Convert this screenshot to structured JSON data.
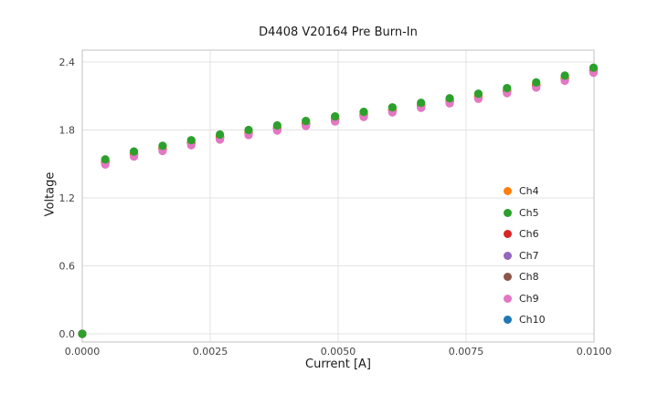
{
  "chart_data": {
    "type": "scatter",
    "title": "D4408 V20164 Pre Burn-In",
    "xlabel": "Current [A]",
    "ylabel": "Voltage",
    "xlim": [
      0.0,
      0.01
    ],
    "ylim": [
      0.0,
      2.4
    ],
    "grid": true,
    "legend_position": "lower right",
    "xticks": {
      "values": [
        0.0,
        0.0025,
        0.005,
        0.0075,
        0.01
      ],
      "labels": [
        "0.0000",
        "0.0025",
        "0.0050",
        "0.0075",
        "0.0100"
      ]
    },
    "yticks": {
      "values": [
        0.0,
        0.6,
        1.2,
        1.8,
        2.4
      ],
      "labels": [
        "0.0",
        "0.6",
        "1.2",
        "1.8",
        "2.4"
      ]
    },
    "x": [
      0.0,
      0.00045,
      0.00101,
      0.00157,
      0.00213,
      0.00269,
      0.00325,
      0.00381,
      0.00437,
      0.00494,
      0.0055,
      0.00606,
      0.00662,
      0.00718,
      0.00774,
      0.0083,
      0.00887,
      0.00943,
      0.00999
    ],
    "series": [
      {
        "name": "Ch4",
        "color": "#ff7f0e",
        "values": [
          0.0,
          1.525,
          1.595,
          1.645,
          1.695,
          1.745,
          1.785,
          1.825,
          1.865,
          1.905,
          1.945,
          1.985,
          2.025,
          2.065,
          2.105,
          2.155,
          2.205,
          2.265,
          2.335
        ]
      },
      {
        "name": "Ch5",
        "color": "#2ca02c",
        "values": [
          0.0,
          1.54,
          1.61,
          1.66,
          1.71,
          1.76,
          1.8,
          1.84,
          1.88,
          1.92,
          1.96,
          2.0,
          2.04,
          2.08,
          2.12,
          2.17,
          2.22,
          2.28,
          2.35
        ]
      },
      {
        "name": "Ch6",
        "color": "#d62728",
        "values": [
          0.0,
          1.517,
          1.587,
          1.637,
          1.687,
          1.737,
          1.777,
          1.817,
          1.857,
          1.897,
          1.937,
          1.977,
          2.017,
          2.057,
          2.097,
          2.147,
          2.197,
          2.257,
          2.327
        ]
      },
      {
        "name": "Ch7",
        "color": "#9467bd",
        "values": [
          0.0,
          1.512,
          1.582,
          1.632,
          1.682,
          1.732,
          1.772,
          1.812,
          1.852,
          1.892,
          1.932,
          1.972,
          2.012,
          2.052,
          2.092,
          2.142,
          2.192,
          2.252,
          2.322
        ]
      },
      {
        "name": "Ch8",
        "color": "#8c564b",
        "values": [
          0.0,
          1.52,
          1.59,
          1.64,
          1.69,
          1.74,
          1.78,
          1.82,
          1.86,
          1.9,
          1.94,
          1.98,
          2.02,
          2.06,
          2.1,
          2.15,
          2.2,
          2.26,
          2.33
        ]
      },
      {
        "name": "Ch9",
        "color": "#e377c2",
        "values": [
          0.0,
          1.495,
          1.565,
          1.615,
          1.665,
          1.715,
          1.755,
          1.795,
          1.835,
          1.875,
          1.915,
          1.955,
          1.995,
          2.035,
          2.075,
          2.125,
          2.175,
          2.235,
          2.305
        ]
      },
      {
        "name": "Ch10",
        "color": "#1f77b4",
        "values": [
          0.0,
          1.51,
          1.58,
          1.63,
          1.68,
          1.73,
          1.77,
          1.81,
          1.85,
          1.89,
          1.93,
          1.97,
          2.01,
          2.05,
          2.09,
          2.14,
          2.19,
          2.25,
          2.32
        ]
      }
    ],
    "draw_order": [
      "Ch10",
      "Ch8",
      "Ch7",
      "Ch6",
      "Ch4",
      "Ch9",
      "Ch5"
    ],
    "style": {
      "grid_color": "#e3e3e3",
      "spine_color": "#cccccc",
      "tick_label_color": "#444444",
      "marker_radius": 4.6
    }
  }
}
